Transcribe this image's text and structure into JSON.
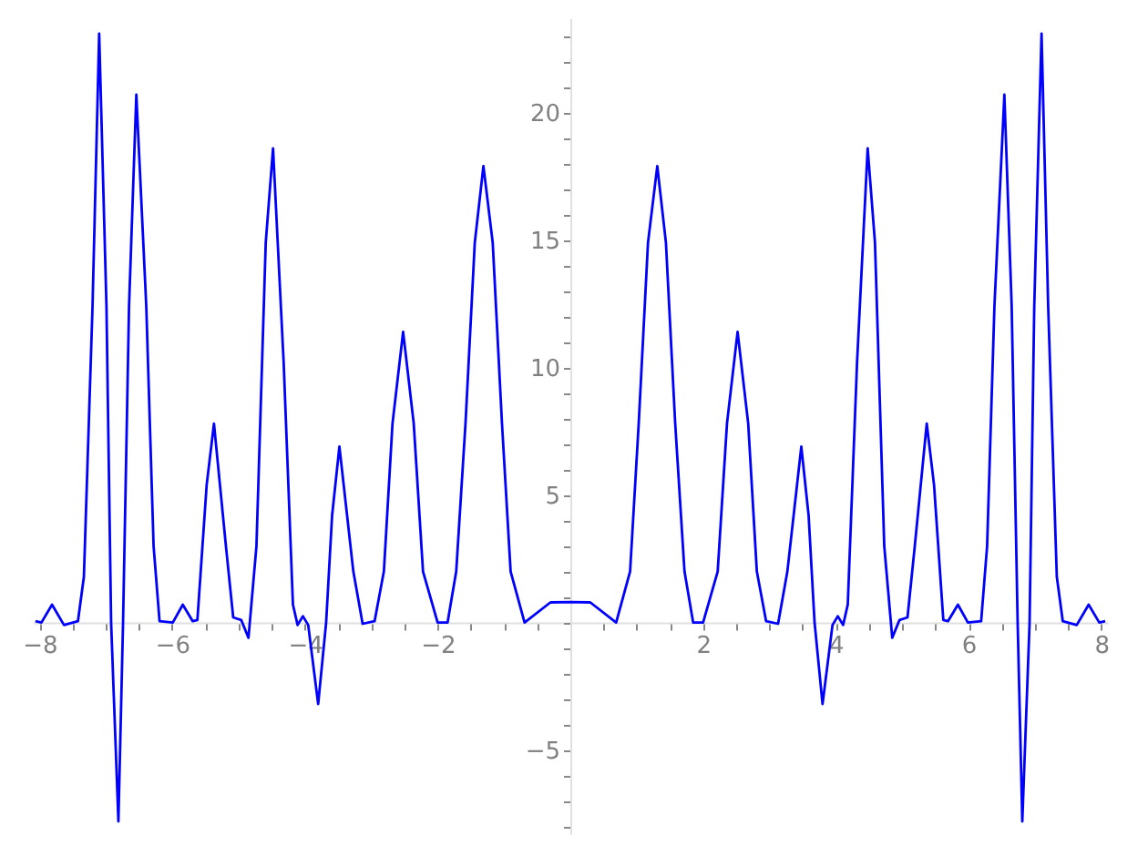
{
  "chart_data": {
    "type": "line",
    "xlim": [
      -8.1,
      8.1
    ],
    "ylim": [
      -8.3,
      23.7
    ],
    "xticks": [
      {
        "value": -8,
        "label": "−8"
      },
      {
        "value": -7.5,
        "label": null
      },
      {
        "value": -7,
        "label": null
      },
      {
        "value": -6.5,
        "label": null
      },
      {
        "value": -6,
        "label": "−6"
      },
      {
        "value": -5.5,
        "label": null
      },
      {
        "value": -5,
        "label": null
      },
      {
        "value": -4.5,
        "label": null
      },
      {
        "value": -4,
        "label": "−4"
      },
      {
        "value": -3.5,
        "label": null
      },
      {
        "value": -3,
        "label": null
      },
      {
        "value": -2.5,
        "label": null
      },
      {
        "value": -2,
        "label": "−2"
      },
      {
        "value": -1.5,
        "label": null
      },
      {
        "value": -1,
        "label": null
      },
      {
        "value": -0.5,
        "label": null
      },
      {
        "value": 0,
        "label": null
      },
      {
        "value": 0.5,
        "label": null
      },
      {
        "value": 1,
        "label": null
      },
      {
        "value": 1.5,
        "label": null
      },
      2,
      {
        "value": 2.5,
        "label": null
      },
      {
        "value": 3,
        "label": null
      },
      {
        "value": 3.5,
        "label": null
      },
      4,
      {
        "value": 4.5,
        "label": null
      },
      {
        "value": 5,
        "label": null
      },
      {
        "value": 5.5,
        "label": null
      },
      6,
      {
        "value": 6.5,
        "label": null
      },
      {
        "value": 7,
        "label": null
      },
      {
        "value": 7.5,
        "label": null
      },
      8
    ],
    "yticks": [
      {
        "value": -8,
        "label": null
      },
      {
        "value": -7,
        "label": null
      },
      {
        "value": -6,
        "label": null
      },
      {
        "value": -5,
        "label": "−5"
      },
      {
        "value": -4,
        "label": null
      },
      {
        "value": -3,
        "label": null
      },
      {
        "value": -2,
        "label": null
      },
      {
        "value": -1,
        "label": null
      },
      {
        "value": 0,
        "label": null
      },
      {
        "value": 1,
        "label": null
      },
      {
        "value": 2,
        "label": null
      },
      {
        "value": 3,
        "label": null
      },
      {
        "value": 4,
        "label": null
      },
      5,
      {
        "value": 6,
        "label": null
      },
      {
        "value": 7,
        "label": null
      },
      {
        "value": 8,
        "label": null
      },
      {
        "value": 9,
        "label": null
      },
      10,
      {
        "value": 11,
        "label": null
      },
      {
        "value": 12,
        "label": null
      },
      {
        "value": 13,
        "label": null
      },
      {
        "value": 14,
        "label": null
      },
      15,
      {
        "value": 16,
        "label": null
      },
      {
        "value": 17,
        "label": null
      },
      {
        "value": 18,
        "label": null
      },
      {
        "value": 19,
        "label": null
      },
      20,
      {
        "value": 21,
        "label": null
      },
      {
        "value": 22,
        "label": null
      },
      {
        "value": 23,
        "label": null
      }
    ],
    "grid": false,
    "marker": "none",
    "line_style": "solid",
    "series": [
      {
        "color": "#0000ff",
        "x": [
          -8.06,
          -7.97,
          -7.81,
          -7.63,
          -7.42,
          -7.33,
          -7.2,
          -7.1,
          -6.99,
          -6.92,
          -6.81,
          -6.74,
          -6.65,
          -6.54,
          -6.39,
          -6.28,
          -6.19,
          -5.99,
          -5.84,
          -5.69,
          -5.62,
          -5.48,
          -5.37,
          -5.19,
          -5.08,
          -4.96,
          -4.85,
          -4.73,
          -4.59,
          -4.48,
          -4.32,
          -4.18,
          -4.11,
          -4.03,
          -3.95,
          -3.8,
          -3.68,
          -3.59,
          -3.48,
          -3.27,
          -3.13,
          -2.95,
          -2.81,
          -2.68,
          -2.52,
          -2.36,
          -2.22,
          -2.0,
          -1.85,
          -1.72,
          -1.58,
          -1.44,
          -1.31,
          -1.17,
          -1.03,
          -0.9,
          -0.69,
          -0.3,
          0,
          0.3,
          0.69,
          0.9,
          1.03,
          1.17,
          1.31,
          1.44,
          1.58,
          1.72,
          1.85,
          2.0,
          2.22,
          2.36,
          2.52,
          2.68,
          2.81,
          2.95,
          3.13,
          3.27,
          3.48,
          3.59,
          3.68,
          3.8,
          3.95,
          4.03,
          4.11,
          4.18,
          4.32,
          4.48,
          4.59,
          4.73,
          4.85,
          4.96,
          5.08,
          5.19,
          5.37,
          5.48,
          5.62,
          5.69,
          5.84,
          5.99,
          6.19,
          6.28,
          6.39,
          6.54,
          6.65,
          6.74,
          6.81,
          6.92,
          6.99,
          7.1,
          7.2,
          7.33,
          7.42,
          7.63,
          7.81,
          7.97,
          8.06
        ],
        "values": [
          0.05,
          0,
          0.7,
          -0.1,
          0.05,
          1.8,
          12.4,
          23.1,
          12.4,
          0,
          -7.8,
          0,
          12.4,
          20.7,
          12.4,
          3,
          0.05,
          0,
          0.7,
          0.05,
          0.1,
          5.4,
          7.8,
          3,
          0.2,
          0.1,
          -0.6,
          3,
          14.9,
          18.6,
          10.2,
          0.7,
          -0.1,
          0.25,
          -0.1,
          -3.2,
          0,
          4.2,
          6.9,
          2,
          -0.05,
          0.05,
          2,
          7.8,
          11.4,
          7.8,
          2,
          0,
          0,
          2,
          7.8,
          14.9,
          17.9,
          14.9,
          7.8,
          2,
          0,
          0.79,
          0.8,
          0.79,
          0,
          2,
          7.8,
          14.9,
          17.9,
          14.9,
          7.8,
          2,
          0,
          0,
          2,
          7.8,
          11.4,
          7.8,
          2,
          0.05,
          -0.05,
          2,
          6.9,
          4.2,
          0,
          -3.2,
          -0.1,
          0.25,
          -0.1,
          0.7,
          10.2,
          18.6,
          14.9,
          3,
          -0.6,
          0.1,
          0.2,
          3,
          7.8,
          5.4,
          0.1,
          0.05,
          0.7,
          0,
          0.05,
          3,
          12.4,
          20.7,
          12.4,
          0,
          -7.8,
          0,
          12.4,
          23.1,
          12.4,
          1.8,
          0.05,
          -0.1,
          0.7,
          0,
          0.05
        ]
      }
    ]
  }
}
